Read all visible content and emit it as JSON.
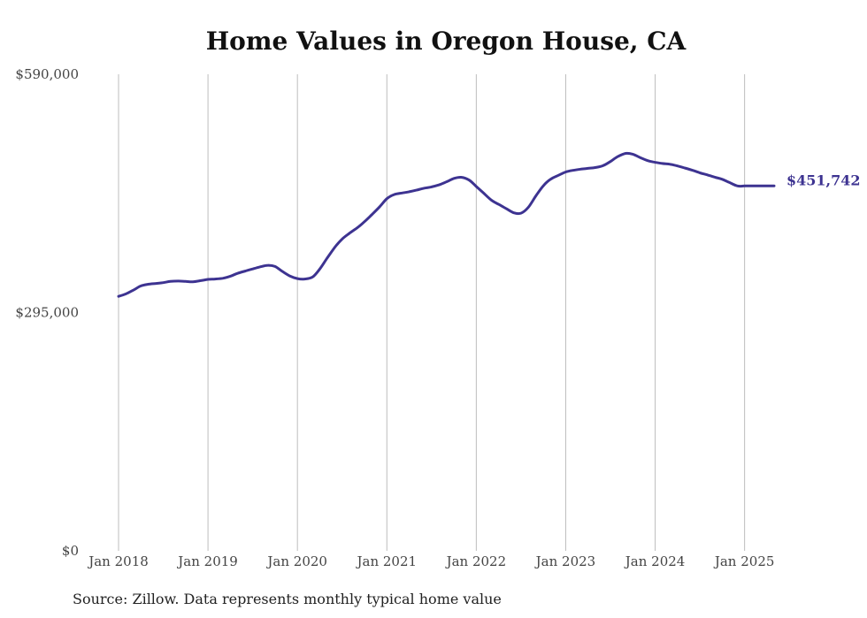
{
  "chart_data": {
    "type": "line",
    "title": "Home Values in Oregon House, CA",
    "source": "Source: Zillow. Data represents monthly typical home value",
    "ylim": [
      0,
      590000
    ],
    "y_ticks": [
      "$0",
      "$295,000",
      "$590,000"
    ],
    "y_tick_values": [
      0,
      295000,
      590000
    ],
    "x_ticks": [
      "Jan 2018",
      "Jan 2019",
      "Jan 2020",
      "Jan 2021",
      "Jan 2022",
      "Jan 2023",
      "Jan 2024",
      "Jan 2025"
    ],
    "x_tick_values": [
      2018.0,
      2019.0,
      2020.0,
      2021.0,
      2022.0,
      2023.0,
      2024.0,
      2025.0
    ],
    "xlim": [
      2018.0,
      2025.33
    ],
    "grid": "vertical",
    "line_color": "#3d3391",
    "end_label": "$451,742",
    "series": [
      {
        "x": [
          2018.0,
          2018.08,
          2018.17,
          2018.25,
          2018.33,
          2018.42,
          2018.5,
          2018.58,
          2018.67,
          2018.75,
          2018.83,
          2018.92,
          2019.0,
          2019.08,
          2019.17,
          2019.25,
          2019.33,
          2019.42,
          2019.5,
          2019.58,
          2019.67,
          2019.75,
          2019.83,
          2019.92,
          2020.0,
          2020.08,
          2020.17,
          2020.25,
          2020.33,
          2020.42,
          2020.5,
          2020.58,
          2020.67,
          2020.75,
          2020.83,
          2020.92,
          2021.0,
          2021.08,
          2021.17,
          2021.25,
          2021.33,
          2021.42,
          2021.5,
          2021.58,
          2021.67,
          2021.75,
          2021.83,
          2021.92,
          2022.0,
          2022.08,
          2022.17,
          2022.25,
          2022.33,
          2022.42,
          2022.5,
          2022.58,
          2022.67,
          2022.75,
          2022.83,
          2022.92,
          2023.0,
          2023.08,
          2023.17,
          2023.25,
          2023.33,
          2023.42,
          2023.5,
          2023.58,
          2023.67,
          2023.75,
          2023.83,
          2023.92,
          2024.0,
          2024.08,
          2024.17,
          2024.25,
          2024.33,
          2024.42,
          2024.5,
          2024.58,
          2024.67,
          2024.75,
          2024.83,
          2024.92,
          2025.0,
          2025.08,
          2025.17,
          2025.25,
          2025.33
        ],
        "y": [
          315000,
          318000,
          323000,
          328000,
          330000,
          331000,
          332000,
          333500,
          334000,
          333500,
          333000,
          334500,
          336000,
          336500,
          337500,
          340000,
          343500,
          346500,
          349000,
          351500,
          353500,
          352000,
          346000,
          340000,
          337000,
          336500,
          339000,
          349000,
          362000,
          376000,
          386000,
          393000,
          400000,
          407500,
          416000,
          426000,
          436000,
          441000,
          443000,
          444500,
          446500,
          449000,
          450500,
          453000,
          457000,
          461000,
          462500,
          459000,
          451000,
          443000,
          434000,
          429000,
          424000,
          418500,
          418000,
          425000,
          440000,
          452000,
          460000,
          465000,
          469000,
          471000,
          472500,
          473500,
          474500,
          477000,
          482000,
          488000,
          492000,
          491000,
          487000,
          483000,
          481000,
          479500,
          478500,
          476500,
          474000,
          471000,
          468000,
          465500,
          462500,
          460000,
          456000,
          451742,
          451742,
          451742,
          451742,
          451742,
          451742
        ]
      }
    ]
  }
}
